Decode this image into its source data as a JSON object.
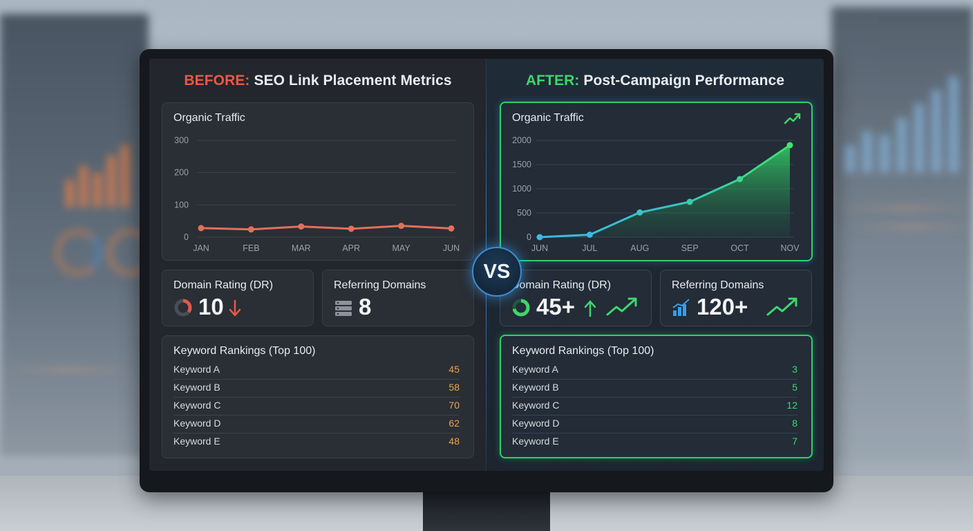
{
  "before": {
    "label": "BEFORE:",
    "title": "SEO Link Placement Metrics",
    "traffic": {
      "title": "Organic Traffic",
      "y_ticks": [
        "300",
        "200",
        "100",
        "0"
      ],
      "x_ticks": [
        "JAN",
        "FEB",
        "MAR",
        "APR",
        "MAY",
        "JUN"
      ]
    },
    "dr": {
      "title": "Domain Rating (DR)",
      "value": "10",
      "trend": "down"
    },
    "ref": {
      "title": "Referring Domains",
      "value": "8"
    },
    "keywords": {
      "title": "Keyword Rankings (Top 100)",
      "rows": [
        {
          "name": "Keyword A",
          "rank": "45"
        },
        {
          "name": "Keyword B",
          "rank": "58"
        },
        {
          "name": "Keyword C",
          "rank": "70"
        },
        {
          "name": "Keyword D",
          "rank": "62"
        },
        {
          "name": "Keyword E",
          "rank": "48"
        }
      ]
    }
  },
  "after": {
    "label": "AFTER:",
    "title": "Post-Campaign Performance",
    "traffic": {
      "title": "Organic Traffic",
      "y_ticks": [
        "2000",
        "1500",
        "1000",
        "500",
        "0"
      ],
      "x_ticks": [
        "JUN",
        "JUL",
        "AUG",
        "SEP",
        "OCT",
        "NOV"
      ]
    },
    "dr": {
      "title": "Domain Rating (DR)",
      "value": "45+",
      "trend": "up"
    },
    "ref": {
      "title": "Referring Domains",
      "value": "120+"
    },
    "keywords": {
      "title": "Keyword Rankings (Top 100)",
      "rows": [
        {
          "name": "Keyword A",
          "rank": "3"
        },
        {
          "name": "Keyword B",
          "rank": "5"
        },
        {
          "name": "Keyword C",
          "rank": "12"
        },
        {
          "name": "Keyword D",
          "rank": "8"
        },
        {
          "name": "Keyword E",
          "rank": "7"
        }
      ]
    }
  },
  "vs_label": "VS",
  "icons": {
    "dr_before": "donut-gauge-icon",
    "ref_before": "server-stack-icon",
    "dr_after": "donut-gauge-icon",
    "ref_after": "bar-chart-icon",
    "trend_up": "trend-up-icon",
    "arrow_down": "arrow-down-icon",
    "arrow_up": "arrow-up-icon"
  },
  "colors": {
    "before_accent": "#e65a47",
    "after_accent": "#3fd66b",
    "before_rank": "#f0a448",
    "blue_line": "#3ab8e8"
  },
  "chart_data": [
    {
      "type": "line",
      "title": "Organic Traffic",
      "categories": [
        "JAN",
        "FEB",
        "MAR",
        "APR",
        "MAY",
        "JUN"
      ],
      "values": [
        28,
        24,
        33,
        26,
        35,
        27
      ],
      "ylim": [
        0,
        300
      ],
      "grid": true
    },
    {
      "type": "area",
      "title": "Organic Traffic",
      "categories": [
        "JUN",
        "JUL",
        "AUG",
        "SEP",
        "OCT",
        "NOV"
      ],
      "values": [
        0,
        50,
        510,
        730,
        1200,
        1900
      ],
      "ylim": [
        0,
        2000
      ],
      "grid": true
    }
  ]
}
